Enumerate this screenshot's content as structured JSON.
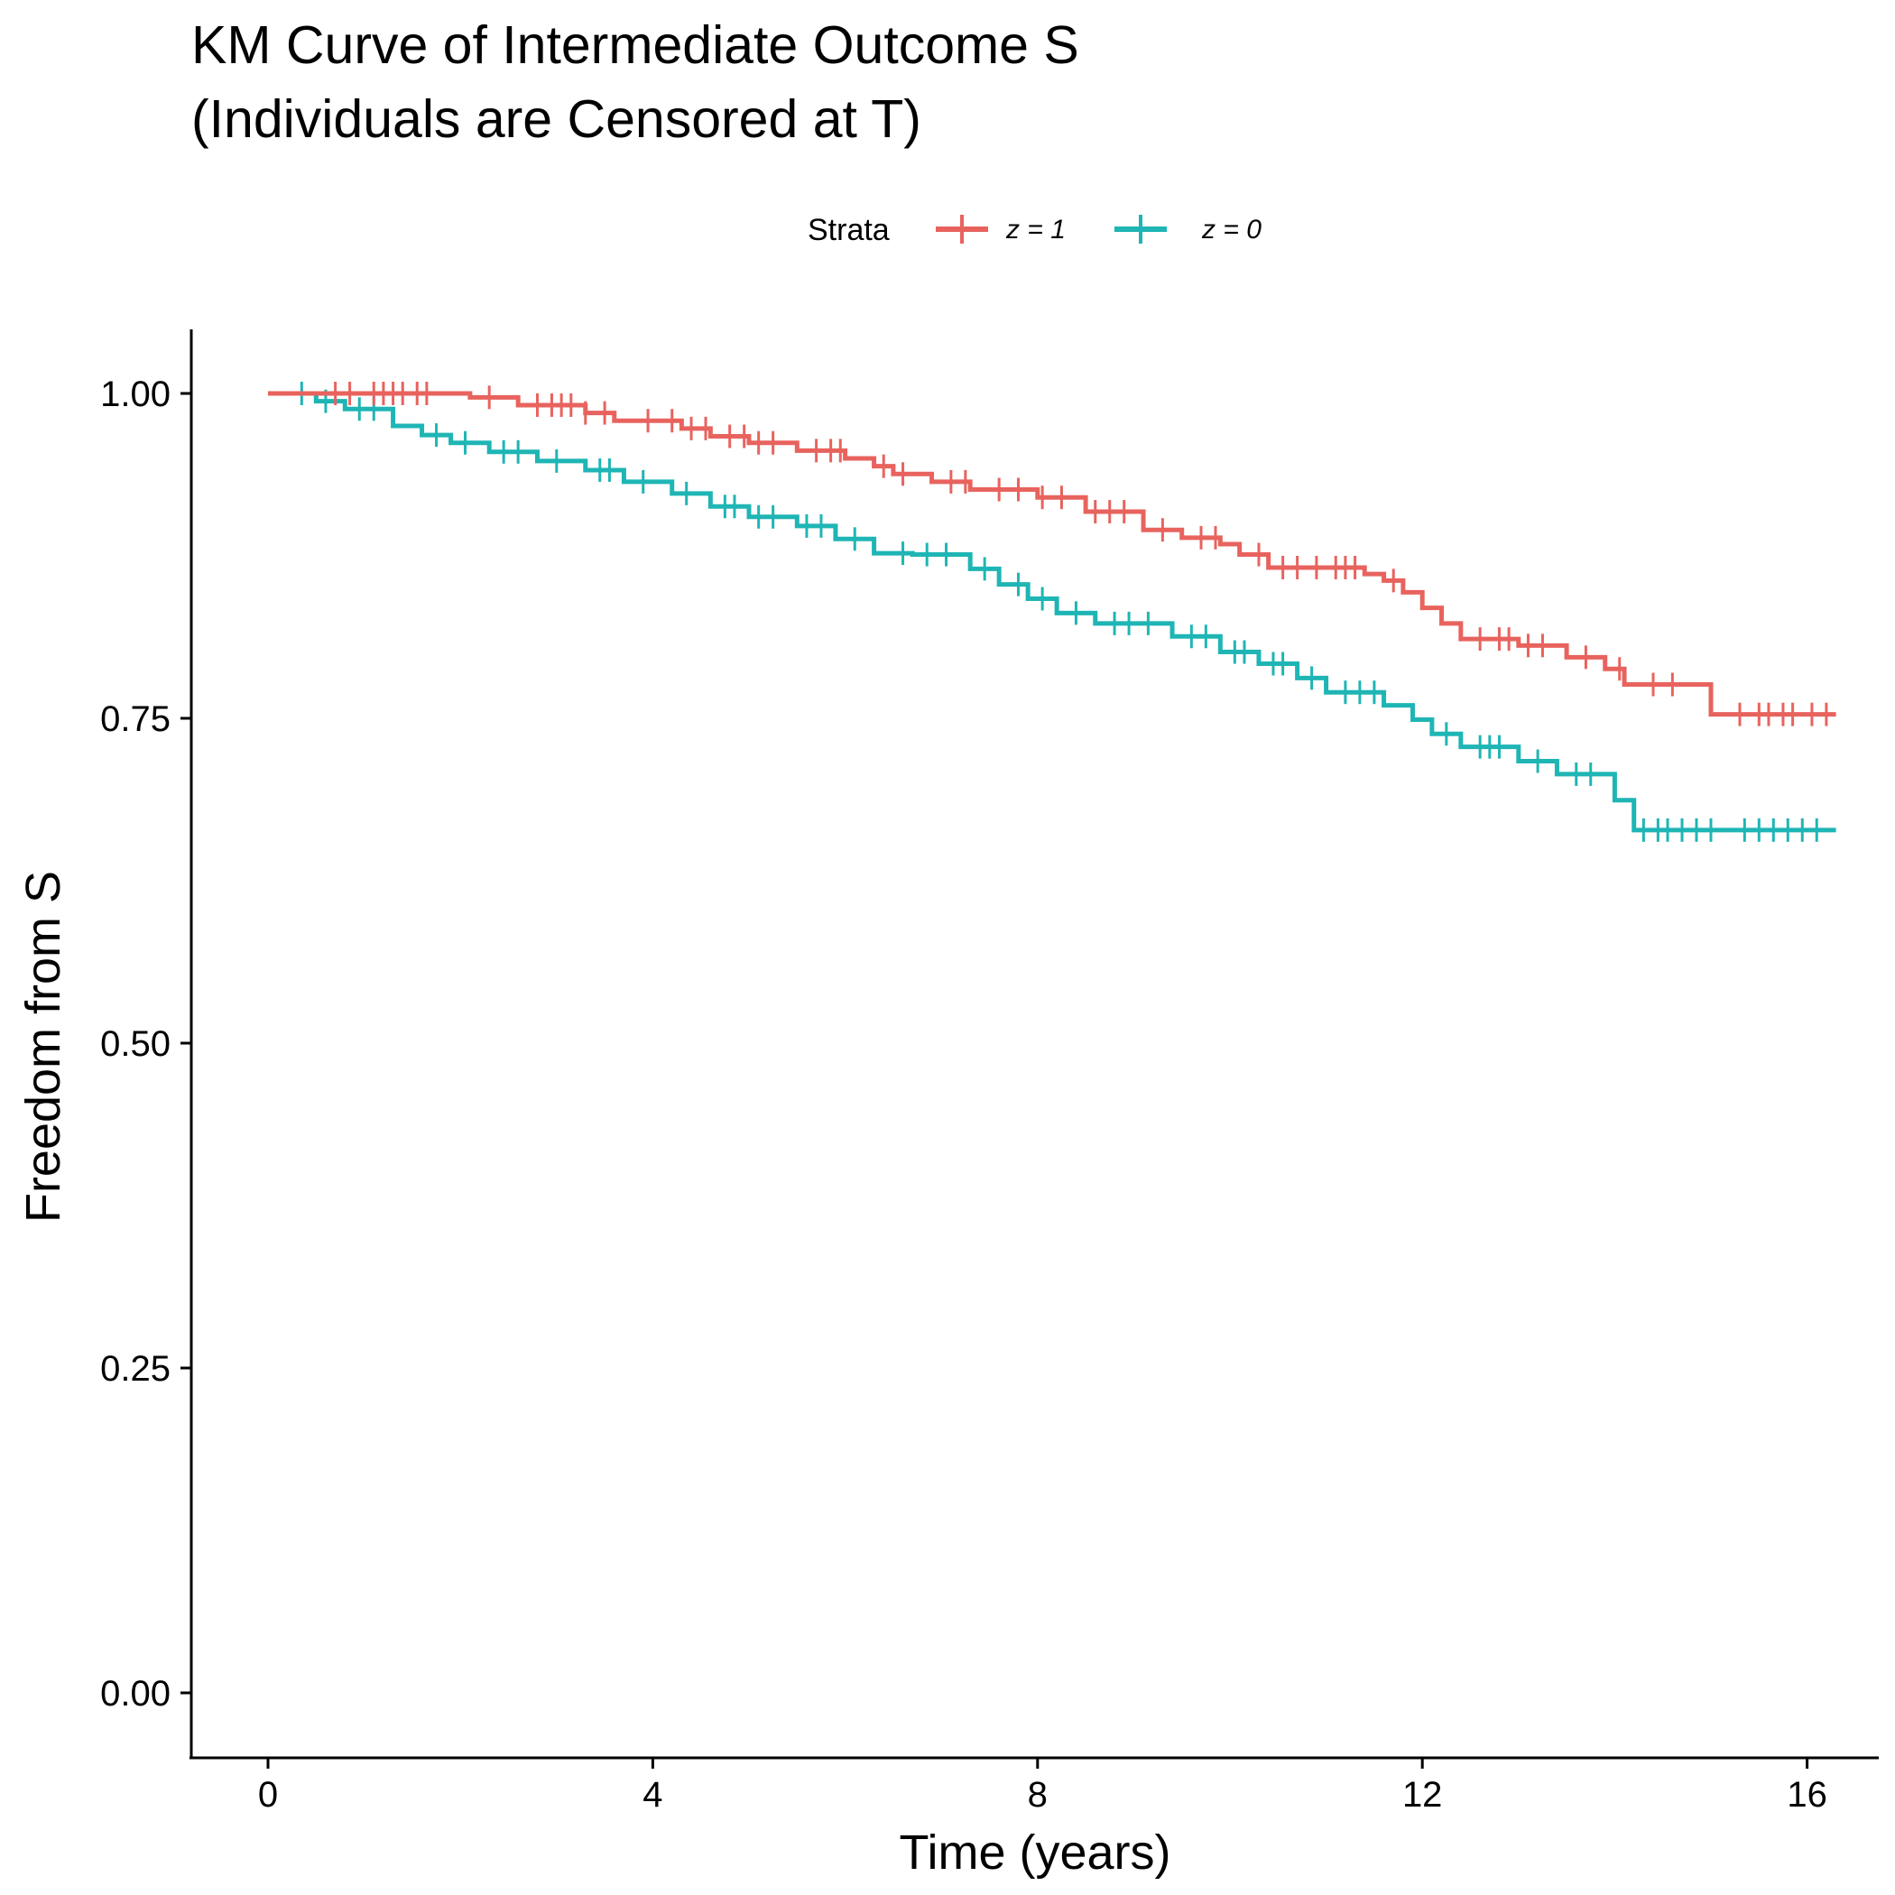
{
  "chart_data": {
    "type": "line",
    "subtype": "kaplan-meier-step",
    "title": [
      "KM Curve of Intermediate Outcome S",
      "(Individuals are Censored at T)"
    ],
    "xlabel": "Time (years)",
    "ylabel": "Freedom from S",
    "xlim": [
      -0.8,
      16.8
    ],
    "ylim": [
      -0.05,
      1.05
    ],
    "xticks": [
      0,
      4,
      8,
      12,
      16
    ],
    "xtick_labels": [
      "0",
      "4",
      "8",
      "12",
      "16"
    ],
    "yticks": [
      0,
      0.25,
      0.5,
      0.75,
      1.0
    ],
    "ytick_labels": [
      "0.00",
      "0.25",
      "0.50",
      "0.75",
      "1.00"
    ],
    "grid": false,
    "legend": {
      "title": "Strata",
      "position": "top",
      "entries": [
        {
          "label": "z = 1",
          "color": "#E8635E"
        },
        {
          "label": "z = 0",
          "color": "#1FB5B5"
        }
      ]
    },
    "series": [
      {
        "name": "z = 1",
        "color": "#E8635E",
        "x": [
          0,
          2.1,
          2.6,
          3.3,
          3.6,
          4.3,
          4.6,
          5.0,
          5.5,
          6.0,
          6.3,
          6.5,
          6.9,
          7.3,
          8.0,
          8.5,
          9.1,
          9.5,
          9.9,
          10.1,
          10.4,
          11.4,
          11.6,
          11.8,
          12.0,
          12.2,
          12.4,
          13.0,
          13.5,
          13.9,
          14.1,
          15.0,
          16.3
        ],
        "y": [
          1.0,
          0.997,
          0.991,
          0.985,
          0.979,
          0.973,
          0.967,
          0.962,
          0.956,
          0.95,
          0.944,
          0.938,
          0.932,
          0.926,
          0.92,
          0.909,
          0.895,
          0.889,
          0.884,
          0.876,
          0.866,
          0.861,
          0.856,
          0.847,
          0.835,
          0.823,
          0.811,
          0.806,
          0.797,
          0.788,
          0.776,
          0.753,
          0.753
        ],
        "censor_times": [
          0.7,
          0.85,
          1.1,
          1.2,
          1.3,
          1.4,
          1.55,
          1.65,
          2.3,
          2.8,
          2.95,
          3.05,
          3.15,
          3.3,
          3.5,
          3.95,
          4.2,
          4.4,
          4.55,
          4.8,
          4.95,
          5.1,
          5.25,
          5.7,
          5.85,
          5.95,
          6.4,
          6.6,
          7.1,
          7.25,
          7.6,
          7.8,
          8.05,
          8.25,
          8.6,
          8.75,
          8.9,
          9.3,
          9.7,
          9.85,
          10.3,
          10.55,
          10.7,
          10.9,
          11.1,
          11.2,
          11.3,
          11.7,
          12.6,
          12.8,
          12.9,
          13.1,
          13.25,
          13.7,
          14.05,
          14.4,
          14.6,
          15.3,
          15.5,
          15.6,
          15.75,
          15.85,
          16.05,
          16.2
        ]
      },
      {
        "name": "z = 0",
        "color": "#1FB5B5",
        "x": [
          0,
          0.5,
          0.8,
          1.3,
          1.6,
          1.9,
          2.3,
          2.8,
          3.3,
          3.7,
          4.2,
          4.6,
          5.0,
          5.5,
          5.9,
          6.3,
          6.7,
          7.3,
          7.6,
          7.9,
          8.2,
          8.6,
          9.4,
          9.9,
          10.3,
          10.7,
          11.0,
          11.6,
          11.9,
          12.1,
          12.4,
          13.0,
          13.4,
          14.0,
          14.2,
          16.3
        ],
        "y": [
          1.0,
          0.994,
          0.988,
          0.975,
          0.968,
          0.962,
          0.955,
          0.948,
          0.941,
          0.932,
          0.923,
          0.913,
          0.905,
          0.898,
          0.888,
          0.877,
          0.876,
          0.865,
          0.853,
          0.842,
          0.831,
          0.823,
          0.813,
          0.801,
          0.792,
          0.781,
          0.77,
          0.76,
          0.749,
          0.738,
          0.728,
          0.717,
          0.707,
          0.687,
          0.664,
          0.664
        ],
        "censor_times": [
          0.35,
          0.6,
          0.95,
          1.1,
          1.75,
          2.05,
          2.45,
          2.6,
          3.0,
          3.45,
          3.55,
          3.9,
          4.35,
          4.75,
          4.85,
          5.1,
          5.25,
          5.6,
          5.75,
          6.1,
          6.6,
          6.85,
          7.05,
          7.45,
          7.8,
          8.05,
          8.4,
          8.8,
          8.95,
          9.15,
          9.6,
          9.75,
          10.05,
          10.15,
          10.45,
          10.55,
          10.85,
          11.2,
          11.35,
          11.5,
          12.25,
          12.6,
          12.7,
          12.8,
          13.2,
          13.6,
          13.75,
          14.3,
          14.45,
          14.55,
          14.7,
          14.85,
          15.0,
          15.35,
          15.5,
          15.65,
          15.8,
          15.95,
          16.1
        ]
      }
    ]
  }
}
